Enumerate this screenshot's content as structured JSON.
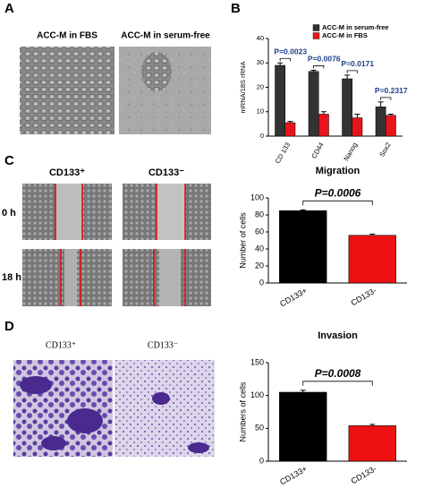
{
  "panels": {
    "A": {
      "label": "A",
      "images": [
        "ACC-M in FBS",
        "ACC-M in serum-free"
      ]
    },
    "B": {
      "label": "B"
    },
    "C": {
      "label": "C",
      "images": [
        "CD133⁺",
        "CD133⁻"
      ],
      "rows": [
        "0 h",
        "18 h"
      ]
    },
    "D": {
      "label": "D",
      "images": [
        "CD133⁺",
        "CD133⁻"
      ]
    }
  },
  "chart_data": [
    {
      "type": "bar",
      "ylabel": "mRNA/18S rRNA",
      "categories": [
        "CD 133",
        "CD44",
        "Nanog",
        "Sox2"
      ],
      "series": [
        {
          "name": "ACC-M in serum-free",
          "color": "#333333",
          "values": [
            29,
            26.5,
            23.5,
            12
          ],
          "errors": [
            1,
            0.5,
            1.5,
            2
          ]
        },
        {
          "name": "ACC-M in FBS",
          "color": "#e8141b",
          "values": [
            5.5,
            9,
            7.5,
            8.5
          ],
          "errors": [
            0.5,
            1,
            1.5,
            0.5
          ]
        }
      ],
      "annotations": [
        "P=0.0023",
        "P=0.0076",
        "P=0.0171",
        "P=0.2317"
      ],
      "ylim": [
        0,
        40
      ],
      "yticks": [
        0,
        10,
        20,
        30,
        40
      ]
    },
    {
      "type": "bar",
      "title": "Migration",
      "ylabel": "Number of cells",
      "categories": [
        "CD133+",
        "CD133-"
      ],
      "values": [
        85,
        56
      ],
      "errors": [
        1,
        1.5
      ],
      "colors": [
        "#000000",
        "#ee1111"
      ],
      "annotation": "P=0.0006",
      "ylim": [
        0,
        100
      ],
      "yticks": [
        0,
        20,
        40,
        60,
        80,
        100
      ]
    },
    {
      "type": "bar",
      "title": "Invasion",
      "ylabel": "Numbers of cells",
      "categories": [
        "CD133+",
        "CD133-"
      ],
      "values": [
        105,
        54
      ],
      "errors": [
        3,
        2
      ],
      "colors": [
        "#000000",
        "#ee1111"
      ],
      "annotation": "P=0.0008",
      "ylim": [
        0,
        150
      ],
      "yticks": [
        0,
        50,
        100,
        150
      ]
    }
  ]
}
